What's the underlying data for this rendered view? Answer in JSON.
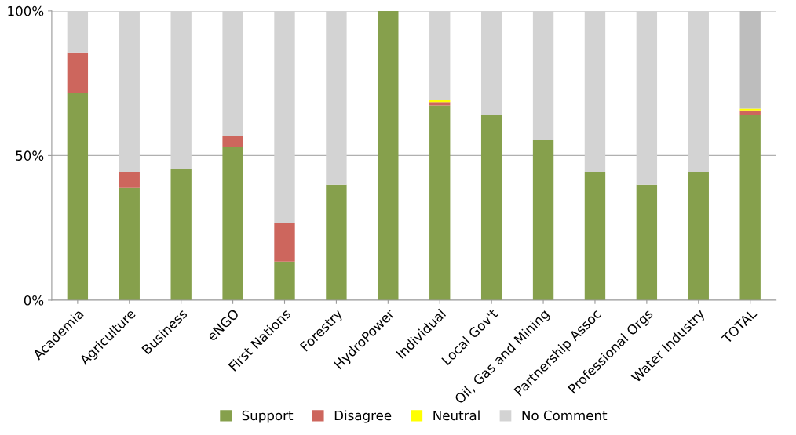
{
  "chart_data": {
    "type": "bar",
    "stacked": true,
    "categories": [
      "Academia",
      "Agriculture",
      "Business",
      "eNGO",
      "First Nations",
      "Forestry",
      "HydroPower",
      "Individual",
      "Local Gov't",
      "Oil, Gas and Mining",
      "Partnership Assoc",
      "Professional Orgs",
      "Water Industry",
      "TOTAL"
    ],
    "series": [
      {
        "name": "Support",
        "color": "#86a04c",
        "values": [
          71.5,
          38.8,
          45.3,
          52.9,
          13.3,
          39.9,
          100,
          67.3,
          63.9,
          55.5,
          44.3,
          39.9,
          44.3,
          63.9
        ]
      },
      {
        "name": "Disagree",
        "color": "#cd665d",
        "values": [
          14.2,
          5.5,
          0,
          3.9,
          13.3,
          0,
          0,
          1.2,
          0,
          0,
          0,
          0,
          0,
          1.7
        ]
      },
      {
        "name": "Neutral",
        "color": "#ffff00",
        "values": [
          0,
          0,
          0,
          0,
          0,
          0,
          0,
          0.6,
          0,
          0,
          0,
          0,
          0,
          0.6
        ]
      },
      {
        "name": "No Comment",
        "color": "#d3d3d3",
        "colors": [
          "#d3d3d3",
          "#d3d3d3",
          "#d3d3d3",
          "#d3d3d3",
          "#d3d3d3",
          "#d3d3d3",
          "#d3d3d3",
          "#d3d3d3",
          "#d3d3d3",
          "#d3d3d3",
          "#d3d3d3",
          "#d3d3d3",
          "#d3d3d3",
          "#bdbdbd"
        ],
        "values": [
          14.3,
          55.7,
          54.7,
          43.2,
          73.4,
          60.1,
          0,
          30.9,
          36.1,
          44.5,
          55.7,
          60.1,
          55.7,
          33.8
        ]
      }
    ],
    "ylim": [
      0,
      100
    ],
    "yticks": [
      {
        "value": 0,
        "label": "0%"
      },
      {
        "value": 50,
        "label": "50%"
      },
      {
        "value": 100,
        "label": "100%"
      }
    ],
    "grid": "y",
    "legend": "bottom"
  }
}
